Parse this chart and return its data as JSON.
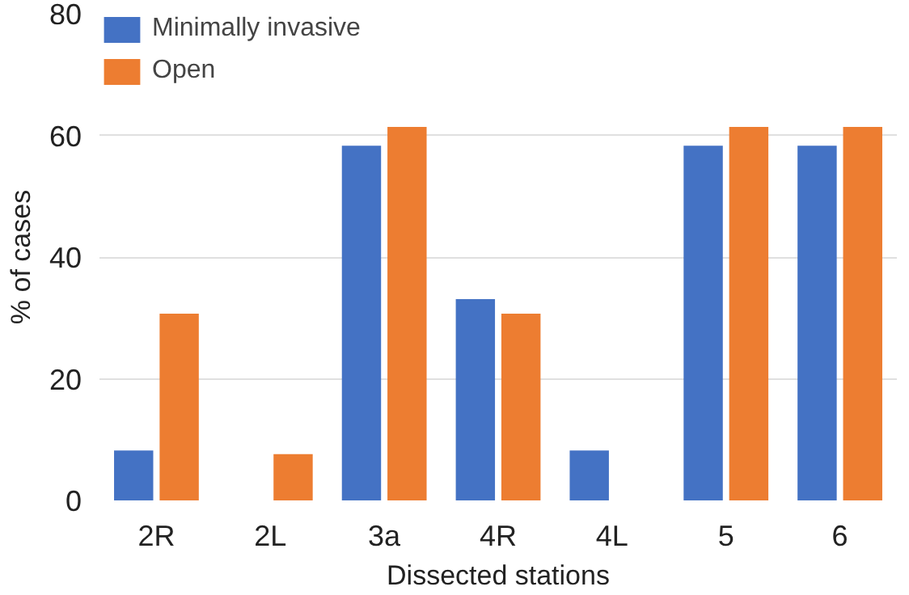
{
  "chart_data": {
    "type": "bar",
    "xlabel": "Dissected stations",
    "ylabel": "% of cases",
    "categories": [
      "2R",
      "2L",
      "3a",
      "4R",
      "4L",
      "5",
      "6"
    ],
    "series": [
      {
        "name": "Minimally invasive",
        "color": "#4472c4",
        "values": [
          8.2,
          0,
          58.3,
          33.1,
          8.2,
          58.3,
          58.3
        ]
      },
      {
        "name": "Open",
        "color": "#ed7d31",
        "values": [
          30.7,
          7.6,
          61.4,
          30.7,
          0,
          61.4,
          61.4
        ]
      }
    ],
    "ylim": [
      0,
      80
    ],
    "yticks": [
      0,
      20,
      40,
      60,
      80
    ],
    "grid": "y",
    "legend": "top left"
  }
}
